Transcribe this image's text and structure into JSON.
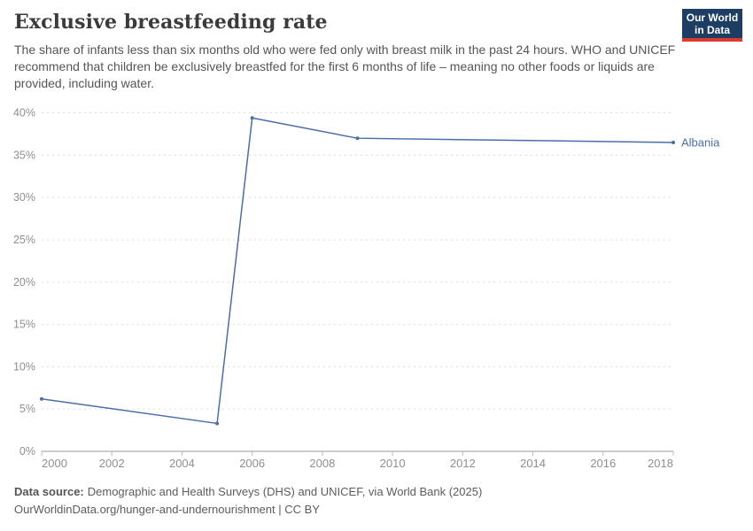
{
  "header": {
    "title": "Exclusive breastfeeding rate",
    "subtitle": "The share of infants less than six months old who were fed only with breast milk in the past 24 hours. WHO and UNICEF recommend that children be exclusively breastfed for the first 6 months of life – meaning no other foods or liquids are provided, including water.",
    "logo": {
      "line1": "Our World",
      "line2": "in Data"
    }
  },
  "colors": {
    "line": "#4b6ea9",
    "grid": "#dcdcdc",
    "axis": "#999999",
    "tick": "#bbbbbb",
    "tick_label": "#8f8f8f",
    "logo_bg": "#1d3d63",
    "logo_stripe": "#d93a32"
  },
  "chart_data": {
    "type": "line",
    "title": "Exclusive breastfeeding rate",
    "xlabel": "",
    "ylabel": "",
    "xlim": [
      2000,
      2018
    ],
    "ylim": [
      0,
      40
    ],
    "grid": "horizontal-dashed",
    "legend_position": "end-of-line-label",
    "x_ticks": [
      {
        "value": 2000,
        "label": "2000"
      },
      {
        "value": 2002,
        "label": "2002"
      },
      {
        "value": 2004,
        "label": "2004"
      },
      {
        "value": 2006,
        "label": "2006"
      },
      {
        "value": 2008,
        "label": "2008"
      },
      {
        "value": 2010,
        "label": "2010"
      },
      {
        "value": 2012,
        "label": "2012"
      },
      {
        "value": 2014,
        "label": "2014"
      },
      {
        "value": 2016,
        "label": "2016"
      },
      {
        "value": 2018,
        "label": "2018"
      }
    ],
    "y_ticks": [
      {
        "value": 0,
        "label": "0%"
      },
      {
        "value": 5,
        "label": "5%"
      },
      {
        "value": 10,
        "label": "10%"
      },
      {
        "value": 15,
        "label": "15%"
      },
      {
        "value": 20,
        "label": "20%"
      },
      {
        "value": 25,
        "label": "25%"
      },
      {
        "value": 30,
        "label": "30%"
      },
      {
        "value": 35,
        "label": "35%"
      },
      {
        "value": 40,
        "label": "40%"
      }
    ],
    "series": [
      {
        "name": "Albania",
        "color": "#4b6ea9",
        "points": [
          {
            "year": 2000,
            "value": 6.2
          },
          {
            "year": 2005,
            "value": 3.3
          },
          {
            "year": 2006,
            "value": 39.4
          },
          {
            "year": 2009,
            "value": 37.0
          },
          {
            "year": 2018,
            "value": 36.5
          }
        ]
      }
    ]
  },
  "footer": {
    "source_label": "Data source:",
    "source_text": "Demographic and Health Surveys (DHS) and UNICEF, via World Bank (2025)",
    "link_text": "OurWorldinData.org/hunger-and-undernourishment | CC BY"
  }
}
